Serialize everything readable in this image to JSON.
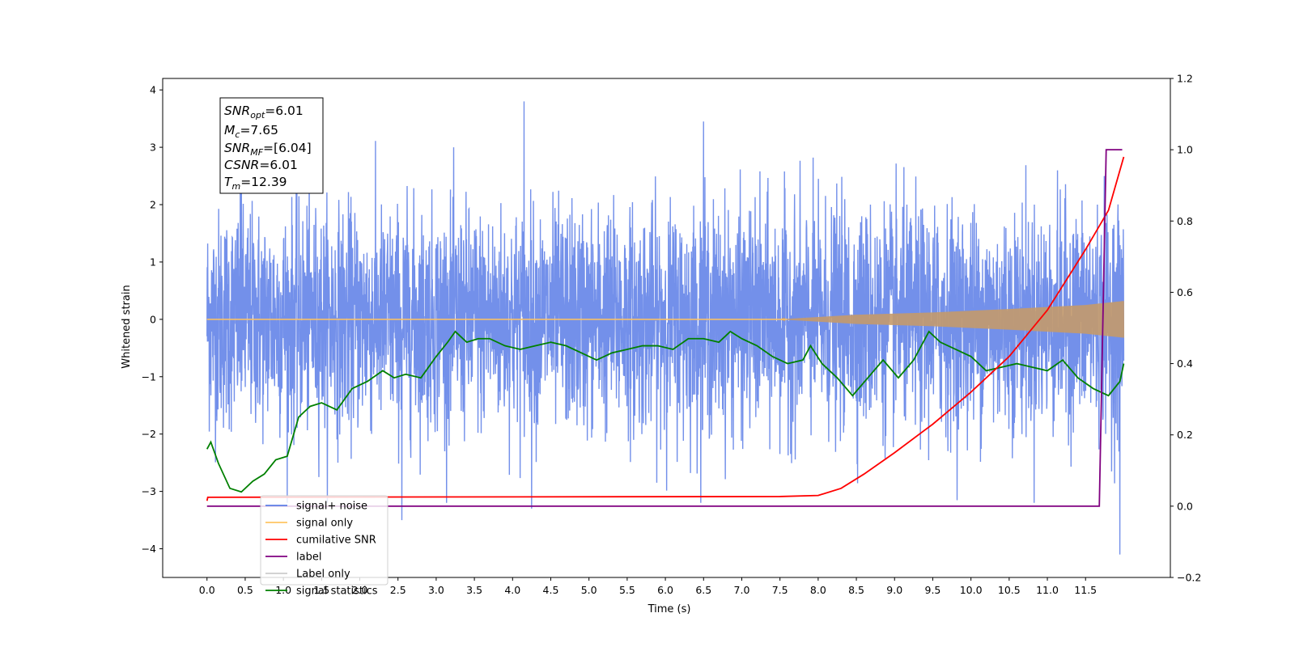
{
  "chart_data": {
    "type": "line",
    "xlabel": "Time (s)",
    "ylabel": "Whitened strain",
    "xlim": [
      -0.58,
      12.61
    ],
    "ylim": [
      -4.5,
      4.2
    ],
    "y2lim": [
      -0.2,
      1.2
    ],
    "x_ticks": [
      "0.0",
      "0.5",
      "1.0",
      "1.5",
      "2.0",
      "2.5",
      "3.0",
      "3.5",
      "4.0",
      "4.5",
      "5.0",
      "5.5",
      "6.0",
      "6.5",
      "7.0",
      "7.5",
      "8.0",
      "8.5",
      "9.0",
      "9.5",
      "10.0",
      "10.5",
      "11.0",
      "11.5"
    ],
    "y_ticks": [
      "4",
      "3",
      "2",
      "1",
      "0",
      "−1",
      "−2",
      "−3",
      "−4"
    ],
    "y2_ticks": [
      "1.2",
      "1.0",
      "0.8",
      "0.6",
      "0.4",
      "0.2",
      "0.0",
      "−0.2"
    ],
    "legend_position": "lower-left",
    "legend": [
      {
        "label": "signal+ noise",
        "color": "#5b7de6"
      },
      {
        "label": "signal only",
        "color": "#ffc462"
      },
      {
        "label": "cumilative SNR",
        "color": "#ff0000"
      },
      {
        "label": "label",
        "color": "#800080"
      },
      {
        "label": "Label only",
        "color": "#cccccc"
      },
      {
        "label": "signal statistics",
        "color": "#008000"
      }
    ],
    "annotation": {
      "snr_opt": {
        "base": "SNR",
        "sub": "opt",
        "value": "=6.01"
      },
      "mc": {
        "base": "M",
        "sub": "c",
        "value": "=7.65"
      },
      "snr_mf": {
        "base": "SNR",
        "sub": "MF",
        "value": "=[6.04]"
      },
      "csnr": {
        "base": "CSNR",
        "sub": "",
        "value": "=6.01"
      },
      "tm": {
        "base": "T",
        "sub": "m",
        "value": "=12.39"
      }
    },
    "series": [
      {
        "name": "signal+ noise",
        "axis": "left",
        "color": "#5b7de6",
        "description_generated": "whitened noise with inspiral signal; amplitude envelope roughly ±2.5, extremes ±3.8",
        "x_range": [
          0.0,
          12.0
        ],
        "peaks": [
          [
            4.15,
            3.8
          ],
          [
            6.5,
            3.45
          ],
          [
            11.95,
            -4.1
          ],
          [
            2.55,
            -3.5
          ],
          [
            4.25,
            -3.3
          ],
          [
            0.45,
            3.0
          ]
        ]
      },
      {
        "name": "signal only",
        "axis": "left",
        "color": "#ffc462",
        "x_range": [
          0.0,
          12.0
        ],
        "envelope": [
          [
            0.0,
            0.0
          ],
          [
            7.5,
            0.0
          ],
          [
            8.5,
            0.08
          ],
          [
            9.5,
            0.12
          ],
          [
            10.5,
            0.18
          ],
          [
            11.5,
            0.25
          ],
          [
            12.0,
            0.32
          ]
        ]
      },
      {
        "name": "cumilative SNR",
        "axis": "right",
        "color": "#ff0000",
        "points": [
          [
            0.0,
            0.015
          ],
          [
            0.01,
            0.025
          ],
          [
            7.5,
            0.027
          ],
          [
            8.0,
            0.03
          ],
          [
            8.3,
            0.05
          ],
          [
            8.6,
            0.09
          ],
          [
            9.0,
            0.15
          ],
          [
            9.5,
            0.23
          ],
          [
            10.0,
            0.32
          ],
          [
            10.5,
            0.42
          ],
          [
            11.0,
            0.55
          ],
          [
            11.5,
            0.72
          ],
          [
            11.8,
            0.83
          ],
          [
            12.0,
            0.98
          ]
        ]
      },
      {
        "name": "label",
        "axis": "right",
        "color": "#800080",
        "points": [
          [
            0.0,
            0.0
          ],
          [
            11.68,
            0.0
          ],
          [
            11.77,
            1.0
          ],
          [
            11.98,
            1.0
          ]
        ]
      },
      {
        "name": "signal statistics",
        "axis": "right",
        "color": "#008000",
        "points": [
          [
            0.0,
            0.16
          ],
          [
            0.05,
            0.18
          ],
          [
            0.15,
            0.12
          ],
          [
            0.3,
            0.05
          ],
          [
            0.45,
            0.04
          ],
          [
            0.6,
            0.07
          ],
          [
            0.75,
            0.09
          ],
          [
            0.9,
            0.13
          ],
          [
            1.05,
            0.14
          ],
          [
            1.2,
            0.25
          ],
          [
            1.35,
            0.28
          ],
          [
            1.5,
            0.29
          ],
          [
            1.7,
            0.27
          ],
          [
            1.9,
            0.33
          ],
          [
            2.1,
            0.35
          ],
          [
            2.3,
            0.38
          ],
          [
            2.45,
            0.36
          ],
          [
            2.6,
            0.37
          ],
          [
            2.8,
            0.36
          ],
          [
            3.0,
            0.42
          ],
          [
            3.15,
            0.46
          ],
          [
            3.25,
            0.49
          ],
          [
            3.4,
            0.46
          ],
          [
            3.55,
            0.47
          ],
          [
            3.7,
            0.47
          ],
          [
            3.9,
            0.45
          ],
          [
            4.1,
            0.44
          ],
          [
            4.3,
            0.45
          ],
          [
            4.5,
            0.46
          ],
          [
            4.7,
            0.45
          ],
          [
            4.9,
            0.43
          ],
          [
            5.1,
            0.41
          ],
          [
            5.3,
            0.43
          ],
          [
            5.5,
            0.44
          ],
          [
            5.7,
            0.45
          ],
          [
            5.9,
            0.45
          ],
          [
            6.1,
            0.44
          ],
          [
            6.3,
            0.47
          ],
          [
            6.5,
            0.47
          ],
          [
            6.7,
            0.46
          ],
          [
            6.85,
            0.49
          ],
          [
            7.0,
            0.47
          ],
          [
            7.2,
            0.45
          ],
          [
            7.4,
            0.42
          ],
          [
            7.6,
            0.4
          ],
          [
            7.8,
            0.41
          ],
          [
            7.9,
            0.45
          ],
          [
            8.05,
            0.4
          ],
          [
            8.25,
            0.36
          ],
          [
            8.45,
            0.31
          ],
          [
            8.65,
            0.36
          ],
          [
            8.85,
            0.41
          ],
          [
            9.05,
            0.36
          ],
          [
            9.25,
            0.41
          ],
          [
            9.45,
            0.49
          ],
          [
            9.6,
            0.46
          ],
          [
            9.8,
            0.44
          ],
          [
            10.0,
            0.42
          ],
          [
            10.2,
            0.38
          ],
          [
            10.4,
            0.39
          ],
          [
            10.6,
            0.4
          ],
          [
            10.8,
            0.39
          ],
          [
            11.0,
            0.38
          ],
          [
            11.2,
            0.41
          ],
          [
            11.4,
            0.36
          ],
          [
            11.6,
            0.33
          ],
          [
            11.8,
            0.31
          ],
          [
            11.95,
            0.35
          ],
          [
            12.0,
            0.4
          ]
        ]
      }
    ]
  }
}
